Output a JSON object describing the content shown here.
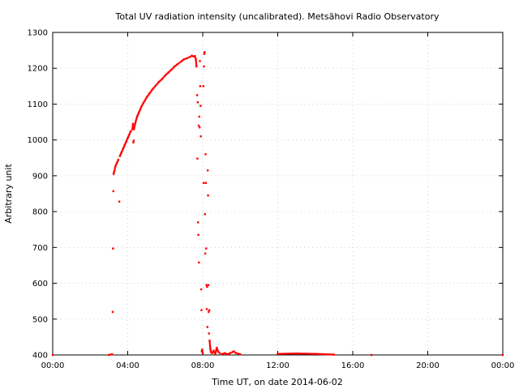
{
  "chart_data": {
    "type": "scatter",
    "title": "Total UV radiation intensity (uncalibrated). Metsähovi Radio Observatory",
    "xlabel": "Time UT, on date 2014-06-02",
    "ylabel": "Arbitrary unit",
    "xlim": [
      "00:00",
      "24:00"
    ],
    "ylim": [
      400,
      1300
    ],
    "grid": true,
    "legend": "none",
    "x_ticks": [
      "00:00",
      "04:00",
      "08:00",
      "12:00",
      "16:00",
      "20:00",
      "00:00"
    ],
    "y_ticks": [
      "400",
      "500",
      "600",
      "700",
      "800",
      "900",
      "1000",
      "1100",
      "1200",
      "1300"
    ],
    "colors": {
      "series": "#ff0000",
      "grid": "#c8c8c8",
      "axis": "#000000"
    },
    "series": [
      {
        "points": [
          [
            "00:00",
            400
          ],
          [
            "03:00",
            400
          ],
          [
            "03:10",
            402
          ],
          [
            "03:12",
            520
          ],
          [
            "03:13",
            697
          ],
          [
            "03:14",
            857
          ],
          [
            "03:15",
            905
          ],
          [
            "03:16",
            910
          ],
          [
            "03:18",
            915
          ],
          [
            "03:20",
            925
          ],
          [
            "03:25",
            935
          ],
          [
            "03:30",
            945
          ],
          [
            "03:33",
            828
          ],
          [
            "03:35",
            955
          ],
          [
            "03:40",
            965
          ],
          [
            "03:45",
            975
          ],
          [
            "03:50",
            985
          ],
          [
            "03:55",
            995
          ],
          [
            "04:00",
            1005
          ],
          [
            "04:05",
            1015
          ],
          [
            "04:10",
            1025
          ],
          [
            "04:15",
            1030
          ],
          [
            "04:17",
            1045
          ],
          [
            "04:18",
            993
          ],
          [
            "04:19",
            998
          ],
          [
            "04:20",
            1030
          ],
          [
            "04:25",
            1050
          ],
          [
            "04:30",
            1065
          ],
          [
            "04:35",
            1075
          ],
          [
            "04:40",
            1085
          ],
          [
            "04:45",
            1095
          ],
          [
            "04:50",
            1103
          ],
          [
            "04:55",
            1110
          ],
          [
            "05:00",
            1118
          ],
          [
            "05:10",
            1130
          ],
          [
            "05:20",
            1142
          ],
          [
            "05:30",
            1152
          ],
          [
            "05:40",
            1162
          ],
          [
            "05:50",
            1170
          ],
          [
            "06:00",
            1180
          ],
          [
            "06:10",
            1188
          ],
          [
            "06:20",
            1196
          ],
          [
            "06:30",
            1205
          ],
          [
            "06:40",
            1212
          ],
          [
            "06:50",
            1218
          ],
          [
            "07:00",
            1225
          ],
          [
            "07:10",
            1228
          ],
          [
            "07:20",
            1232
          ],
          [
            "07:25",
            1235
          ],
          [
            "07:30",
            1233
          ],
          [
            "07:35",
            1234
          ],
          [
            "07:38",
            1225
          ],
          [
            "07:40",
            1205
          ],
          [
            "07:42",
            1125
          ],
          [
            "07:43",
            948
          ],
          [
            "07:44",
            1105
          ],
          [
            "07:45",
            770
          ],
          [
            "07:46",
            735
          ],
          [
            "07:47",
            1040
          ],
          [
            "07:48",
            658
          ],
          [
            "07:49",
            1065
          ],
          [
            "07:50",
            1035
          ],
          [
            "07:51",
            1220
          ],
          [
            "07:52",
            1150
          ],
          [
            "07:53",
            1095
          ],
          [
            "07:54",
            1010
          ],
          [
            "07:55",
            583
          ],
          [
            "07:56",
            525
          ],
          [
            "07:57",
            410
          ],
          [
            "07:58",
            415
          ],
          [
            "08:00",
            405
          ],
          [
            "08:02",
            1150
          ],
          [
            "08:03",
            880
          ],
          [
            "08:04",
            1205
          ],
          [
            "08:05",
            1240
          ],
          [
            "08:06",
            1245
          ],
          [
            "08:07",
            793
          ],
          [
            "08:08",
            683
          ],
          [
            "08:09",
            960
          ],
          [
            "08:10",
            880
          ],
          [
            "08:11",
            697
          ],
          [
            "08:12",
            595
          ],
          [
            "08:13",
            528
          ],
          [
            "08:14",
            590
          ],
          [
            "08:15",
            478
          ],
          [
            "08:16",
            915
          ],
          [
            "08:17",
            845
          ],
          [
            "08:18",
            595
          ],
          [
            "08:19",
            520
          ],
          [
            "08:20",
            460
          ],
          [
            "08:21",
            525
          ],
          [
            "08:22",
            440
          ],
          [
            "08:24",
            420
          ],
          [
            "08:26",
            408
          ],
          [
            "08:30",
            405
          ],
          [
            "08:35",
            412
          ],
          [
            "08:40",
            403
          ],
          [
            "08:45",
            420
          ],
          [
            "08:50",
            408
          ],
          [
            "09:00",
            402
          ],
          [
            "09:10",
            405
          ],
          [
            "09:20",
            402
          ],
          [
            "09:40",
            410
          ],
          [
            "09:45",
            406
          ],
          [
            "10:00",
            402
          ],
          [
            "12:00",
            403
          ],
          [
            "13:00",
            404
          ],
          [
            "14:00",
            403
          ],
          [
            "15:00",
            401
          ],
          [
            "17:00",
            400
          ],
          [
            "24:00",
            400
          ]
        ]
      }
    ]
  }
}
